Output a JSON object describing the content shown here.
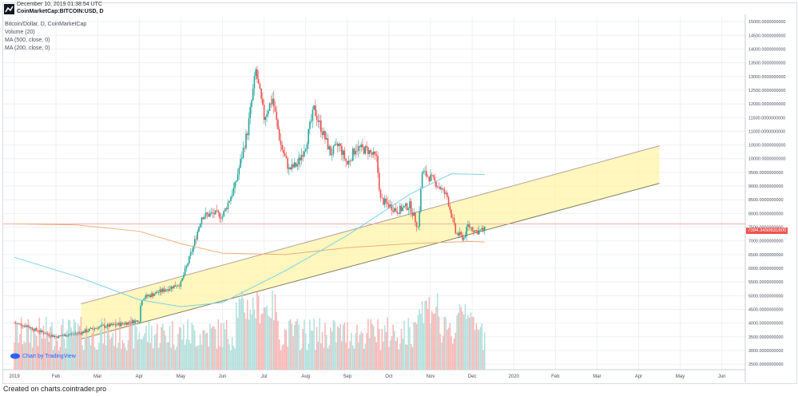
{
  "header": {
    "date": "December 10, 2019 01:38:54 UTC",
    "symbol": "CoinMarketCap:BITCOIN:USD, D"
  },
  "legend": {
    "series_title": "Bitcoin/Dollar, D, CoinMarketCap",
    "volume": "Volume (20)",
    "ma500": "MA (500, close, 0)",
    "ma200": "MA (200, close, 0)"
  },
  "branding": {
    "tradingview": "Chart by TradingView"
  },
  "footer": {
    "text": "Created on charts.cointrader.pro"
  },
  "price_label": "7394.3450631600",
  "colors": {
    "up": "#26a69a",
    "down": "#ef5350",
    "volume_up": "#b2dfdb",
    "volume_down": "#f5b7b6",
    "ma200": "#f0b079",
    "ma500": "#7dd3e6",
    "channel_fill": "#fff4a8",
    "channel_line": "#7f7f5a"
  },
  "chart_data": {
    "type": "candlestick",
    "title": "Bitcoin/Dollar, D, CoinMarketCap",
    "x_ticks": [
      "2019",
      "Feb",
      "Mar",
      "Apr",
      "May",
      "Jun",
      "Jul",
      "Aug",
      "Sep",
      "Oct",
      "Nov",
      "Dec",
      "2020",
      "Feb",
      "Mar",
      "Apr",
      "May",
      "Jun"
    ],
    "y_ticks": [
      "15000.0000000000",
      "14500.0000000000",
      "14000.0000000000",
      "13500.0000000000",
      "13000.0000000000",
      "12500.0000000000",
      "12000.0000000000",
      "11500.0000000000",
      "11000.0000000000",
      "10500.0000000000",
      "10000.0000000000",
      "9500.0000000000",
      "9000.0000000000",
      "8500.0000000000",
      "8000.0000000000",
      "7500.0000000000",
      "7000.0000000000",
      "6500.0000000000",
      "6000.0000000000",
      "5500.0000000000",
      "5000.0000000000",
      "4500.0000000000",
      "4000.0000000000",
      "3500.0000000000",
      "3000.0000000000",
      "2500.0000000000"
    ],
    "ylim": [
      2300,
      15150
    ],
    "x_range_months": [
      0,
      17.6
    ],
    "last_price": 7394.345,
    "price_path": [
      {
        "m": 0.0,
        "p": 4000
      },
      {
        "m": 0.3,
        "p": 3900
      },
      {
        "m": 0.5,
        "p": 3750
      },
      {
        "m": 0.8,
        "p": 3600
      },
      {
        "m": 1.0,
        "p": 3500
      },
      {
        "m": 1.3,
        "p": 3580
      },
      {
        "m": 1.6,
        "p": 3650
      },
      {
        "m": 2.0,
        "p": 3850
      },
      {
        "m": 2.5,
        "p": 3950
      },
      {
        "m": 3.0,
        "p": 4100
      },
      {
        "m": 3.05,
        "p": 4900
      },
      {
        "m": 3.5,
        "p": 5150
      },
      {
        "m": 4.0,
        "p": 5450
      },
      {
        "m": 4.3,
        "p": 6800
      },
      {
        "m": 4.5,
        "p": 7900
      },
      {
        "m": 4.8,
        "p": 8000
      },
      {
        "m": 5.0,
        "p": 7900
      },
      {
        "m": 5.3,
        "p": 9000
      },
      {
        "m": 5.6,
        "p": 11000
      },
      {
        "m": 5.8,
        "p": 13200
      },
      {
        "m": 6.0,
        "p": 11500
      },
      {
        "m": 6.2,
        "p": 12200
      },
      {
        "m": 6.4,
        "p": 10500
      },
      {
        "m": 6.6,
        "p": 9600
      },
      {
        "m": 6.8,
        "p": 9800
      },
      {
        "m": 7.0,
        "p": 10500
      },
      {
        "m": 7.2,
        "p": 11800
      },
      {
        "m": 7.4,
        "p": 11000
      },
      {
        "m": 7.6,
        "p": 10200
      },
      {
        "m": 7.8,
        "p": 10500
      },
      {
        "m": 8.0,
        "p": 9800
      },
      {
        "m": 8.2,
        "p": 10400
      },
      {
        "m": 8.5,
        "p": 10300
      },
      {
        "m": 8.7,
        "p": 10000
      },
      {
        "m": 8.8,
        "p": 8500
      },
      {
        "m": 9.0,
        "p": 8300
      },
      {
        "m": 9.2,
        "p": 8100
      },
      {
        "m": 9.5,
        "p": 8300
      },
      {
        "m": 9.7,
        "p": 7500
      },
      {
        "m": 9.8,
        "p": 9500
      },
      {
        "m": 10.0,
        "p": 9300
      },
      {
        "m": 10.2,
        "p": 9000
      },
      {
        "m": 10.4,
        "p": 8600
      },
      {
        "m": 10.6,
        "p": 7300
      },
      {
        "m": 10.8,
        "p": 7100
      },
      {
        "m": 10.9,
        "p": 7550
      },
      {
        "m": 11.1,
        "p": 7350
      },
      {
        "m": 11.3,
        "p": 7394
      }
    ],
    "ma200": [
      {
        "m": 0.0,
        "p": 7620
      },
      {
        "m": 1.5,
        "p": 7580
      },
      {
        "m": 3.0,
        "p": 7350
      },
      {
        "m": 4.0,
        "p": 6900
      },
      {
        "m": 5.0,
        "p": 6550
      },
      {
        "m": 6.5,
        "p": 6500
      },
      {
        "m": 8.0,
        "p": 6750
      },
      {
        "m": 9.5,
        "p": 6900
      },
      {
        "m": 11.0,
        "p": 6980
      },
      {
        "m": 11.3,
        "p": 6960
      }
    ],
    "ma500": [
      {
        "m": 0.0,
        "p": 6400
      },
      {
        "m": 1.5,
        "p": 5700
      },
      {
        "m": 3.0,
        "p": 4850
      },
      {
        "m": 4.0,
        "p": 4600
      },
      {
        "m": 5.0,
        "p": 4750
      },
      {
        "m": 6.5,
        "p": 5900
      },
      {
        "m": 8.0,
        "p": 7200
      },
      {
        "m": 9.5,
        "p": 8700
      },
      {
        "m": 10.5,
        "p": 9450
      },
      {
        "m": 11.3,
        "p": 9420
      }
    ],
    "channel": {
      "lower": [
        {
          "m": 1.6,
          "p": 3420
        },
        {
          "m": 15.5,
          "p": 9100
        }
      ],
      "upper": [
        {
          "m": 1.6,
          "p": 4700
        },
        {
          "m": 15.5,
          "p": 10470
        }
      ]
    },
    "horizontal_line": 7620,
    "volume_relative": "bars scaled to bottom band; spikes near Jun/Jul and Oct/Nov"
  }
}
